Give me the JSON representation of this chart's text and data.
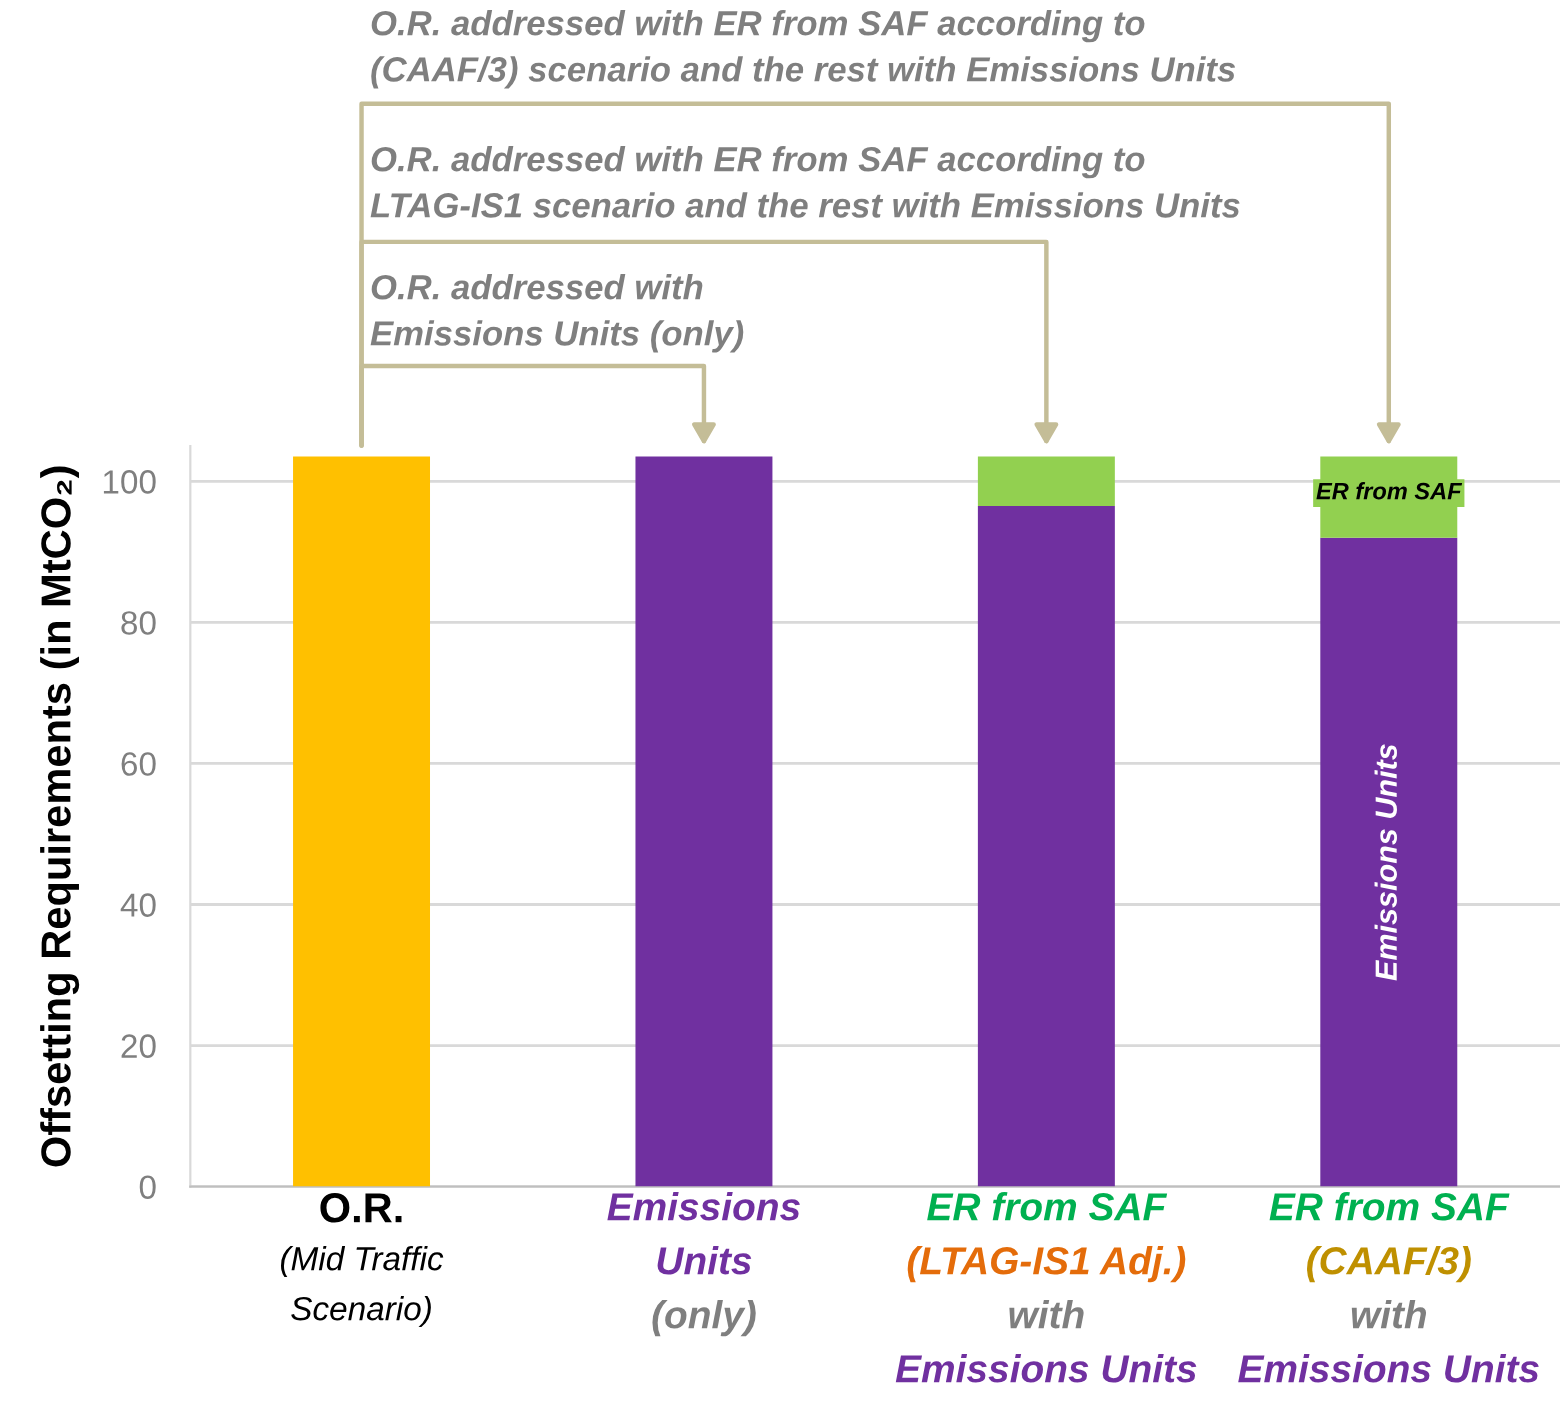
{
  "chart_data": {
    "type": "bar",
    "stacked": true,
    "ylabel": "Offsetting Requirements (in MtCO₂)",
    "categories": [
      "O.R.\n(Mid Traffic\nScenario)",
      "Emissions\nUnits\n(only)",
      "ER from SAF\n(LTAG-IS1 Adj.)\nwith\nEmissions Units",
      "ER from SAF\n(CAAF/3)\nwith\nEmissions Units"
    ],
    "series": [
      {
        "color": "#ffc000",
        "values": [
          103.5,
          null,
          null,
          null
        ]
      },
      {
        "name": "Emissions Units",
        "color": "#7030a0",
        "values": [
          null,
          103.5,
          96.5,
          92
        ]
      },
      {
        "name": "ER from SAF",
        "color": "#92d050",
        "values": [
          null,
          null,
          7,
          11.5
        ]
      }
    ],
    "ylim": [
      0,
      105
    ],
    "yticks": [
      0,
      20,
      40,
      60,
      80,
      100
    ],
    "grid": "y",
    "legend": false,
    "tick_labels": "y",
    "annotations": [
      "O.R. addressed with ER from SAF according to\n(CAAF/3) scenario and the rest with Emissions Units",
      "O.R. addressed with ER from SAF according to\nLTAG-IS1 scenario and the rest with Emissions Units",
      "O.R. addressed with\nEmissions Units (only)"
    ]
  }
}
